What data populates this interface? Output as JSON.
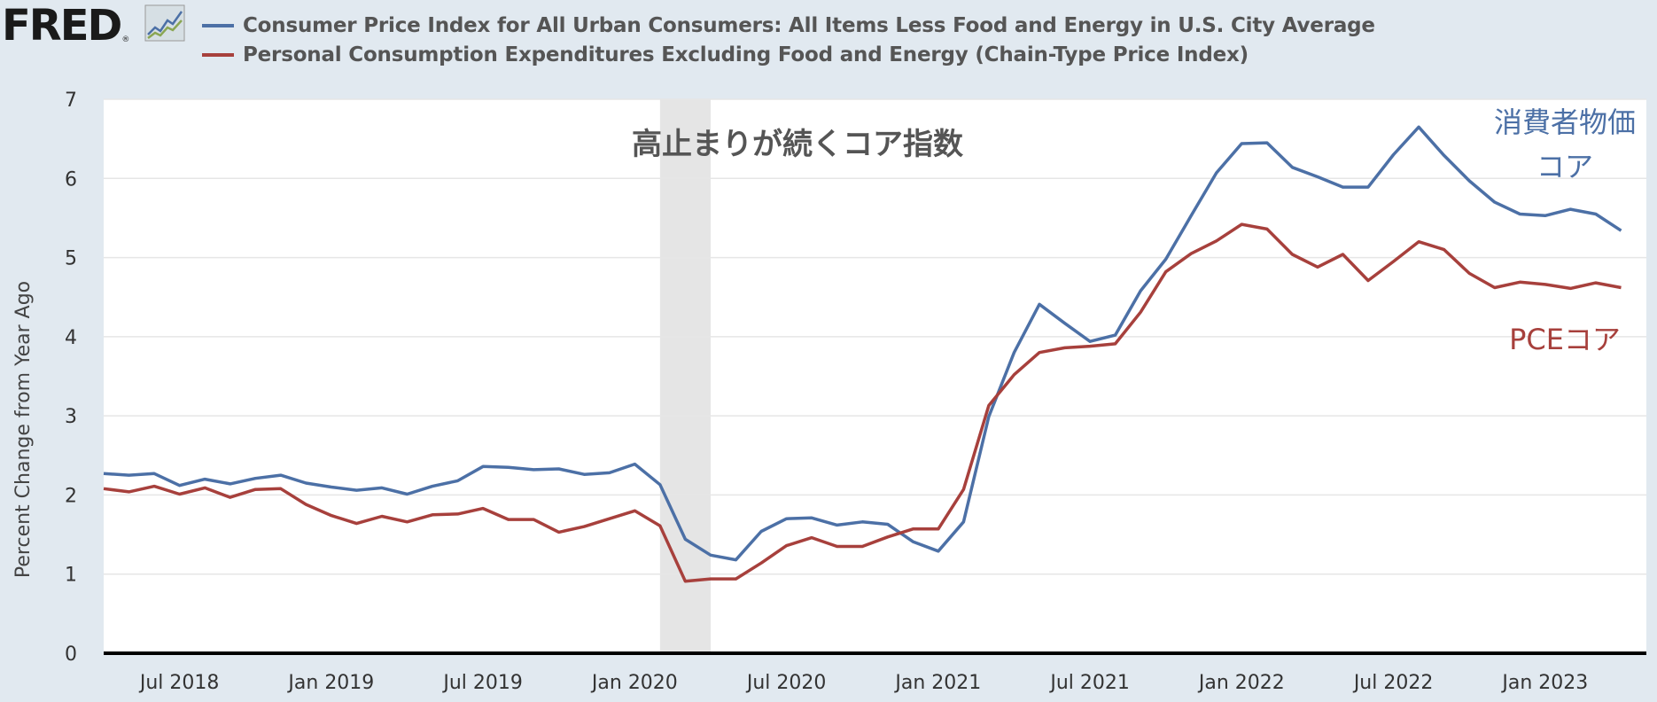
{
  "brand": {
    "logo_text": "FRED",
    "logo_mark": "®",
    "logo_icon": "line-graph-icon"
  },
  "legend": [
    {
      "label": "Consumer Price Index for All Urban Consumers: All Items Less Food and Energy in U.S. City Average",
      "color": "#4c70a6"
    },
    {
      "label": "Personal Consumption Expenditures Excluding Food and Energy (Chain-Type Price Index)",
      "color": "#a7403c"
    }
  ],
  "chart_data": {
    "type": "line",
    "title": "高止まりが続くコア指数",
    "ylabel": "Percent Change from Year Ago",
    "xlabel": "",
    "ylim": [
      0,
      7
    ],
    "y_ticks": [
      0,
      1,
      2,
      3,
      4,
      5,
      6,
      7
    ],
    "x_start": "2018-04",
    "x_end": "2023-05",
    "x_ticks": [
      {
        "label": "Jul 2018",
        "date": "2018-07"
      },
      {
        "label": "Jan 2019",
        "date": "2019-01"
      },
      {
        "label": "Jul 2019",
        "date": "2019-07"
      },
      {
        "label": "Jan 2020",
        "date": "2020-01"
      },
      {
        "label": "Jul 2020",
        "date": "2020-07"
      },
      {
        "label": "Jan 2021",
        "date": "2021-01"
      },
      {
        "label": "Jul 2021",
        "date": "2021-07"
      },
      {
        "label": "Jan 2022",
        "date": "2022-01"
      },
      {
        "label": "Jul 2022",
        "date": "2022-07"
      },
      {
        "label": "Jan 2023",
        "date": "2023-01"
      }
    ],
    "recession": {
      "start": "2020-02",
      "end": "2020-04"
    },
    "grid": true,
    "series": [
      {
        "name": "Consumer Price Index for All Urban Consumers: All Items Less Food and Energy in U.S. City Average",
        "annotation": "消費者物価\nコア",
        "color": "#4c70a6",
        "points": [
          [
            "2018-04",
            2.27
          ],
          [
            "2018-05",
            2.25
          ],
          [
            "2018-06",
            2.27
          ],
          [
            "2018-07",
            2.12
          ],
          [
            "2018-08",
            2.2
          ],
          [
            "2018-09",
            2.14
          ],
          [
            "2018-10",
            2.21
          ],
          [
            "2018-11",
            2.25
          ],
          [
            "2018-12",
            2.15
          ],
          [
            "2019-01",
            2.1
          ],
          [
            "2019-02",
            2.06
          ],
          [
            "2019-03",
            2.09
          ],
          [
            "2019-04",
            2.01
          ],
          [
            "2019-05",
            2.11
          ],
          [
            "2019-06",
            2.18
          ],
          [
            "2019-07",
            2.36
          ],
          [
            "2019-08",
            2.35
          ],
          [
            "2019-09",
            2.32
          ],
          [
            "2019-10",
            2.33
          ],
          [
            "2019-11",
            2.26
          ],
          [
            "2019-12",
            2.28
          ],
          [
            "2020-01",
            2.39
          ],
          [
            "2020-02",
            2.13
          ],
          [
            "2020-03",
            1.44
          ],
          [
            "2020-04",
            1.24
          ],
          [
            "2020-05",
            1.18
          ],
          [
            "2020-06",
            1.54
          ],
          [
            "2020-07",
            1.7
          ],
          [
            "2020-08",
            1.71
          ],
          [
            "2020-09",
            1.62
          ],
          [
            "2020-10",
            1.66
          ],
          [
            "2020-11",
            1.63
          ],
          [
            "2020-12",
            1.41
          ],
          [
            "2021-01",
            1.29
          ],
          [
            "2021-02",
            1.66
          ],
          [
            "2021-03",
            2.99
          ],
          [
            "2021-04",
            3.8
          ],
          [
            "2021-05",
            4.41
          ],
          [
            "2021-06",
            4.17
          ],
          [
            "2021-07",
            3.94
          ],
          [
            "2021-08",
            4.02
          ],
          [
            "2021-09",
            4.58
          ],
          [
            "2021-10",
            4.98
          ],
          [
            "2021-11",
            5.53
          ],
          [
            "2021-12",
            6.07
          ],
          [
            "2022-01",
            6.44
          ],
          [
            "2022-02",
            6.45
          ],
          [
            "2022-03",
            6.14
          ],
          [
            "2022-04",
            6.02
          ],
          [
            "2022-05",
            5.89
          ],
          [
            "2022-06",
            5.89
          ],
          [
            "2022-07",
            6.3
          ],
          [
            "2022-08",
            6.65
          ],
          [
            "2022-09",
            6.29
          ],
          [
            "2022-10",
            5.97
          ],
          [
            "2022-11",
            5.7
          ],
          [
            "2022-12",
            5.55
          ],
          [
            "2023-01",
            5.53
          ],
          [
            "2023-02",
            5.61
          ],
          [
            "2023-03",
            5.55
          ],
          [
            "2023-04",
            5.34
          ]
        ]
      },
      {
        "name": "Personal Consumption Expenditures Excluding Food and Energy (Chain-Type Price Index)",
        "annotation": "PCEコア",
        "color": "#a7403c",
        "points": [
          [
            "2018-04",
            2.08
          ],
          [
            "2018-05",
            2.04
          ],
          [
            "2018-06",
            2.11
          ],
          [
            "2018-07",
            2.01
          ],
          [
            "2018-08",
            2.09
          ],
          [
            "2018-09",
            1.97
          ],
          [
            "2018-10",
            2.07
          ],
          [
            "2018-11",
            2.08
          ],
          [
            "2018-12",
            1.88
          ],
          [
            "2019-01",
            1.74
          ],
          [
            "2019-02",
            1.64
          ],
          [
            "2019-03",
            1.73
          ],
          [
            "2019-04",
            1.66
          ],
          [
            "2019-05",
            1.75
          ],
          [
            "2019-06",
            1.76
          ],
          [
            "2019-07",
            1.83
          ],
          [
            "2019-08",
            1.69
          ],
          [
            "2019-09",
            1.69
          ],
          [
            "2019-10",
            1.53
          ],
          [
            "2019-11",
            1.6
          ],
          [
            "2019-12",
            1.7
          ],
          [
            "2020-01",
            1.8
          ],
          [
            "2020-02",
            1.61
          ],
          [
            "2020-03",
            0.91
          ],
          [
            "2020-04",
            0.94
          ],
          [
            "2020-05",
            0.94
          ],
          [
            "2020-06",
            1.14
          ],
          [
            "2020-07",
            1.36
          ],
          [
            "2020-08",
            1.46
          ],
          [
            "2020-09",
            1.35
          ],
          [
            "2020-10",
            1.35
          ],
          [
            "2020-11",
            1.47
          ],
          [
            "2020-12",
            1.57
          ],
          [
            "2021-01",
            1.57
          ],
          [
            "2021-02",
            2.07
          ],
          [
            "2021-03",
            3.13
          ],
          [
            "2021-04",
            3.52
          ],
          [
            "2021-05",
            3.8
          ],
          [
            "2021-06",
            3.86
          ],
          [
            "2021-07",
            3.88
          ],
          [
            "2021-08",
            3.91
          ],
          [
            "2021-09",
            4.31
          ],
          [
            "2021-10",
            4.82
          ],
          [
            "2021-11",
            5.05
          ],
          [
            "2021-12",
            5.21
          ],
          [
            "2022-01",
            5.42
          ],
          [
            "2022-02",
            5.36
          ],
          [
            "2022-03",
            5.04
          ],
          [
            "2022-04",
            4.88
          ],
          [
            "2022-05",
            5.04
          ],
          [
            "2022-06",
            4.71
          ],
          [
            "2022-07",
            4.95
          ],
          [
            "2022-08",
            5.2
          ],
          [
            "2022-09",
            5.1
          ],
          [
            "2022-10",
            4.8
          ],
          [
            "2022-11",
            4.62
          ],
          [
            "2022-12",
            4.69
          ],
          [
            "2023-01",
            4.66
          ],
          [
            "2023-02",
            4.61
          ],
          [
            "2023-03",
            4.68
          ],
          [
            "2023-04",
            4.62
          ]
        ]
      }
    ]
  }
}
